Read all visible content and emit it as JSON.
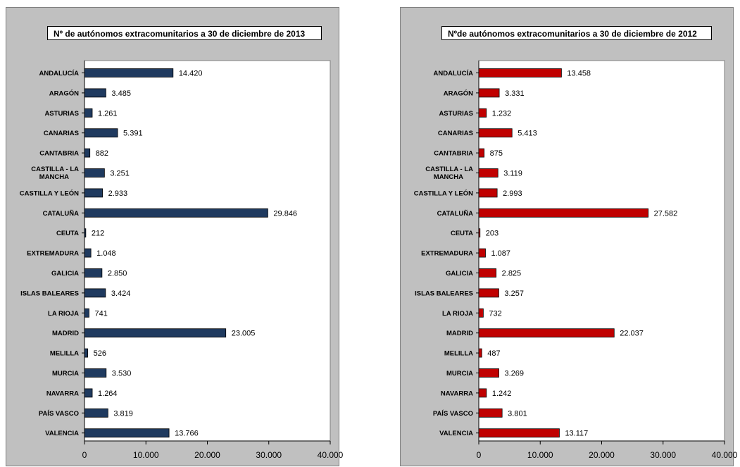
{
  "chart_data": [
    {
      "type": "bar",
      "orientation": "horizontal",
      "title": "Nº de  autónomos extracomunitarios a 30 de diciembre de 2013",
      "categories": [
        "ANDALUCÍA",
        "ARAGÓN",
        "ASTURIAS",
        "CANARIAS",
        "CANTABRIA",
        "CASTILLA - LA MANCHA",
        "CASTILLA Y LEÓN",
        "CATALUÑA",
        "CEUTA",
        "EXTREMADURA",
        "GALICIA",
        "ISLAS BALEARES",
        "LA RIOJA",
        "MADRID",
        "MELILLA",
        "MURCIA",
        "NAVARRA",
        "PAÍS VASCO",
        "VALENCIA"
      ],
      "values": [
        14420,
        3485,
        1261,
        5391,
        882,
        3251,
        2933,
        29846,
        212,
        1048,
        2850,
        3424,
        741,
        23005,
        526,
        3530,
        1264,
        3819,
        13766
      ],
      "value_labels": [
        "14.420",
        "3.485",
        "1.261",
        "5.391",
        "882",
        "3.251",
        "2.933",
        "29.846",
        "212",
        "1.048",
        "2.850",
        "3.424",
        "741",
        "23.005",
        "526",
        "3.530",
        "1.264",
        "3.819",
        "13.766"
      ],
      "xlim": [
        0,
        40000
      ],
      "x_ticks": [
        0,
        10000,
        20000,
        30000,
        40000
      ],
      "x_tick_labels": [
        "0",
        "10.000",
        "20.000",
        "30.000",
        "40.000"
      ],
      "color": "#1f3a5f",
      "grid": false,
      "legend": "none"
    },
    {
      "type": "bar",
      "orientation": "horizontal",
      "title": "Nºde  autónomos extracomunitarios a 30 de diciembre de 2012",
      "categories": [
        "ANDALUCÍA",
        "ARAGÓN",
        "ASTURIAS",
        "CANARIAS",
        "CANTABRIA",
        "CASTILLA - LA MANCHA",
        "CASTILLA Y LEÓN",
        "CATALUÑA",
        "CEUTA",
        "EXTREMADURA",
        "GALICIA",
        "ISLAS BALEARES",
        "LA RIOJA",
        "MADRID",
        "MELILLA",
        "MURCIA",
        "NAVARRA",
        "PAÍS VASCO",
        "VALENCIA"
      ],
      "values": [
        13458,
        3331,
        1232,
        5413,
        875,
        3119,
        2993,
        27582,
        203,
        1087,
        2825,
        3257,
        732,
        22037,
        487,
        3269,
        1242,
        3801,
        13117
      ],
      "value_labels": [
        "13.458",
        "3.331",
        "1.232",
        "5.413",
        "875",
        "3.119",
        "2.993",
        "27.582",
        "203",
        "1.087",
        "2.825",
        "3.257",
        "732",
        "22.037",
        "487",
        "3.269",
        "1.242",
        "3.801",
        "13.117"
      ],
      "xlim": [
        0,
        40000
      ],
      "x_ticks": [
        0,
        10000,
        20000,
        30000,
        40000
      ],
      "x_tick_labels": [
        "0",
        "10.000",
        "20.000",
        "30.000",
        "40.000"
      ],
      "color": "#c00000",
      "grid": false,
      "legend": "none"
    }
  ]
}
